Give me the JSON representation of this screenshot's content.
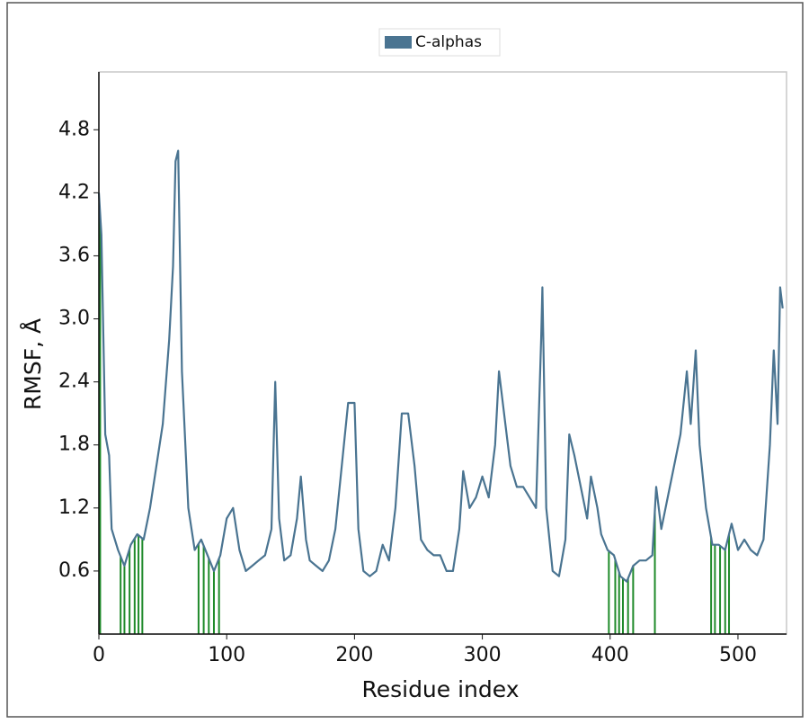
{
  "chart_data": {
    "type": "line",
    "xlabel": "Residue index",
    "ylabel": "RMSF, Å",
    "legend": "upper center",
    "xlim": [
      0,
      538
    ],
    "ylim": [
      0,
      5.35
    ],
    "xticks": [
      0,
      100,
      200,
      300,
      400,
      500
    ],
    "yticks": [
      0.6,
      1.2,
      1.8,
      2.4,
      {
        "value": 3,
        "label": "3.0"
      },
      3.6,
      4.2,
      4.8
    ],
    "x": [
      0,
      2,
      5,
      8,
      10,
      15,
      20,
      25,
      30,
      35,
      40,
      45,
      50,
      55,
      58,
      60,
      62,
      65,
      70,
      75,
      80,
      85,
      90,
      95,
      100,
      105,
      110,
      115,
      120,
      125,
      130,
      135,
      138,
      141,
      145,
      150,
      155,
      158,
      162,
      165,
      170,
      175,
      180,
      185,
      190,
      195,
      200,
      203,
      207,
      212,
      217,
      222,
      227,
      232,
      237,
      242,
      247,
      252,
      257,
      262,
      267,
      272,
      277,
      282,
      285,
      290,
      295,
      300,
      305,
      310,
      313,
      318,
      322,
      327,
      332,
      337,
      342,
      346,
      347,
      350,
      355,
      360,
      365,
      368,
      372,
      377,
      382,
      385,
      390,
      393,
      398,
      403,
      408,
      413,
      418,
      423,
      428,
      433,
      436,
      440,
      445,
      450,
      455,
      460,
      463,
      467,
      470,
      475,
      480,
      485,
      490,
      495,
      500,
      505,
      510,
      515,
      520,
      525,
      528,
      531,
      533,
      535
    ],
    "series": [
      {
        "name": "C-alphas",
        "color": "#4a7491",
        "values": [
          4.2,
          3.8,
          1.9,
          1.7,
          1.0,
          0.8,
          0.65,
          0.85,
          0.95,
          0.9,
          1.2,
          1.6,
          2.0,
          2.8,
          3.5,
          4.5,
          4.6,
          2.5,
          1.2,
          0.8,
          0.9,
          0.75,
          0.6,
          0.75,
          1.1,
          1.2,
          0.8,
          0.6,
          0.65,
          0.7,
          0.75,
          1.0,
          2.4,
          1.1,
          0.7,
          0.75,
          1.1,
          1.5,
          0.9,
          0.7,
          0.65,
          0.6,
          0.7,
          1.0,
          1.6,
          2.2,
          2.2,
          1.0,
          0.6,
          0.55,
          0.6,
          0.85,
          0.7,
          1.2,
          2.1,
          2.1,
          1.6,
          0.9,
          0.8,
          0.75,
          0.75,
          0.6,
          0.6,
          1.0,
          1.55,
          1.2,
          1.3,
          1.5,
          1.3,
          1.8,
          2.5,
          2.0,
          1.6,
          1.4,
          1.4,
          1.3,
          1.2,
          2.8,
          3.3,
          1.2,
          0.6,
          0.55,
          0.9,
          1.9,
          1.7,
          1.4,
          1.1,
          1.5,
          1.2,
          0.95,
          0.8,
          0.75,
          0.55,
          0.5,
          0.65,
          0.7,
          0.7,
          0.75,
          1.4,
          1.0,
          1.3,
          1.6,
          1.9,
          2.5,
          2.0,
          2.7,
          1.8,
          1.2,
          0.85,
          0.85,
          0.8,
          1.05,
          0.8,
          0.9,
          0.8,
          0.75,
          0.9,
          1.8,
          2.7,
          2.0,
          3.3,
          3.1
        ]
      }
    ],
    "contact_color": "#1f8a2a",
    "contact_residues": [
      1,
      17,
      20,
      24,
      28,
      31,
      34,
      78,
      82,
      86,
      90,
      94,
      399,
      404,
      407,
      410,
      414,
      418,
      435,
      479,
      482,
      486,
      490,
      493
    ]
  }
}
